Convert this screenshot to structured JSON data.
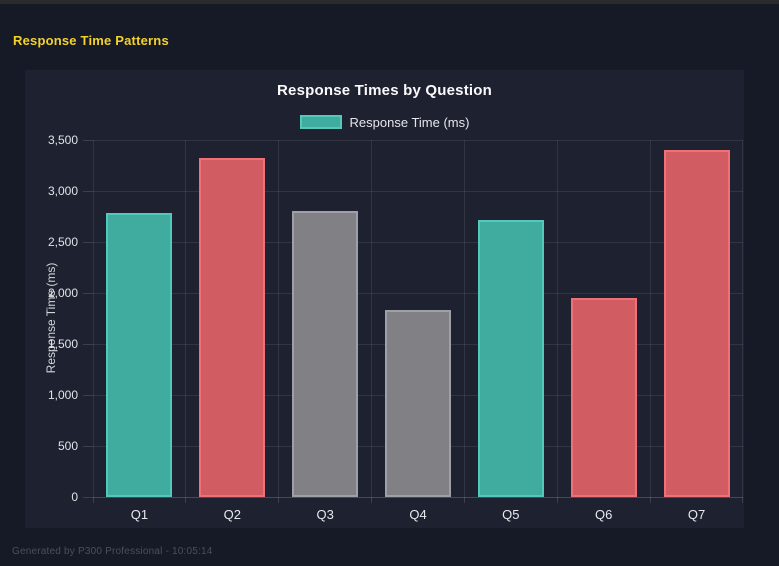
{
  "page": {
    "heading": "Response Time Patterns",
    "footer": "Generated by P300 Professional - 10:05:14"
  },
  "colors": {
    "page_background": "#161a27",
    "top_strip": "#2b2b2b",
    "panel_background": "#1d2130",
    "heading_yellow": "#f3d22b",
    "title_text": "#fafafa",
    "axis_text": "#e2e3e8",
    "gridline": "rgba(255,255,255,0.09)",
    "footer_text": "#4b4f5c",
    "teal_fill": "#40aca0",
    "teal_border": "#55c8bc",
    "red_fill": "#d15d62",
    "red_border": "#ef7077",
    "gray_fill": "#808085",
    "gray_border": "#9fa0a6"
  },
  "chart_data": {
    "type": "bar",
    "title": "Response Times by Question",
    "xlabel": "",
    "ylabel": "Response Time (ms)",
    "categories": [
      "Q1",
      "Q2",
      "Q3",
      "Q4",
      "Q5",
      "Q6",
      "Q7"
    ],
    "series": [
      {
        "name": "Response Time (ms)",
        "values": [
          2780,
          3320,
          2800,
          1830,
          2720,
          1950,
          3400
        ]
      }
    ],
    "bar_colors": [
      {
        "fill": "#40aca0",
        "border": "#55c8bc"
      },
      {
        "fill": "#d15d62",
        "border": "#ef7077"
      },
      {
        "fill": "#808085",
        "border": "#9fa0a6"
      },
      {
        "fill": "#808085",
        "border": "#9fa0a6"
      },
      {
        "fill": "#40aca0",
        "border": "#55c8bc"
      },
      {
        "fill": "#d15d62",
        "border": "#ef7077"
      },
      {
        "fill": "#d15d62",
        "border": "#ef7077"
      }
    ],
    "legend": [
      {
        "label": "Response Time (ms)",
        "fill": "#40aca0",
        "border": "#55c8bc"
      }
    ],
    "legend_position": "top",
    "ylim": [
      0,
      3500
    ],
    "ytick_step": 500,
    "yticks": [
      "0",
      "500",
      "1,000",
      "1,500",
      "2,000",
      "2,500",
      "3,000",
      "3,500"
    ],
    "grid": true
  }
}
